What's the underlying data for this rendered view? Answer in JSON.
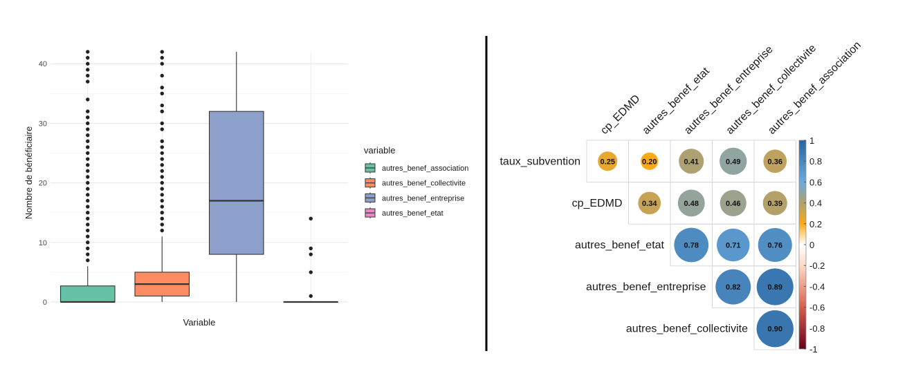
{
  "chart_data": [
    {
      "type": "box",
      "xlabel": "Variable",
      "ylabel": "Nombre de bénéficiaire",
      "ylim": [
        0,
        42
      ],
      "yticks": [
        0,
        10,
        20,
        30,
        40
      ],
      "grid": true,
      "legend": {
        "title": "variable",
        "placement": "right"
      },
      "series": [
        {
          "name": "autres_benef_association",
          "color": "#66c2a5",
          "q1": 0,
          "median": 0,
          "q3": 2.7,
          "whisker_low": 0,
          "whisker_high": 6,
          "outliers": [
            7,
            8,
            9,
            10,
            11,
            12,
            13,
            14,
            15,
            16,
            17,
            18,
            19,
            20,
            21,
            22,
            23,
            24,
            25,
            26,
            27,
            28,
            29,
            30,
            31,
            32,
            34,
            37,
            38,
            39,
            40,
            41,
            42
          ]
        },
        {
          "name": "autres_benef_collectivite",
          "color": "#fc8d62",
          "q1": 1,
          "median": 3,
          "q3": 5,
          "whisker_low": 0,
          "whisker_high": 11,
          "outliers": [
            12,
            13,
            14,
            15,
            16,
            17,
            18,
            19,
            20,
            21,
            22,
            23,
            24,
            25,
            26,
            27,
            29,
            30,
            32,
            33,
            35,
            36,
            38,
            40,
            41,
            42
          ]
        },
        {
          "name": "autres_benef_entreprise",
          "color": "#8da0cb",
          "q1": 8,
          "median": 17,
          "q3": 32,
          "whisker_low": 0,
          "whisker_high": 42,
          "outliers": []
        },
        {
          "name": "autres_benef_etat",
          "color": "#e78ac3",
          "q1": 0,
          "median": 0,
          "q3": 0,
          "whisker_low": 0,
          "whisker_high": 0,
          "outliers": [
            1,
            5,
            8,
            9,
            14
          ]
        }
      ]
    },
    {
      "type": "heatmap",
      "style": "correlation-circles-upper-triangle",
      "columns": [
        "cp_EDMD",
        "autres_benef_etat",
        "autres_benef_entreprise",
        "autres_benef_collectivite",
        "autres_benef_association"
      ],
      "rows": [
        "taux_subvention",
        "cp_EDMD",
        "autres_benef_etat",
        "autres_benef_entreprise",
        "autres_benef_collectivite"
      ],
      "values": [
        [
          0.25,
          0.2,
          0.41,
          0.49,
          0.36
        ],
        [
          null,
          0.34,
          0.48,
          0.46,
          0.39
        ],
        [
          null,
          null,
          0.78,
          0.71,
          0.76
        ],
        [
          null,
          null,
          null,
          0.82,
          0.89
        ],
        [
          null,
          null,
          null,
          null,
          0.9
        ]
      ],
      "colorbar": {
        "range": [
          -1,
          1
        ],
        "ticks": [
          "1",
          "0.8",
          "0.6",
          "0.4",
          "0.2",
          "0",
          "-0.2",
          "-0.4",
          "-0.6",
          "-0.8",
          "-1"
        ]
      }
    }
  ]
}
